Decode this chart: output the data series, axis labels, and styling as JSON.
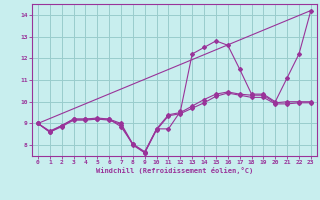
{
  "xlabel": "Windchill (Refroidissement éolien,°C)",
  "bg_color": "#c8eeee",
  "line_color": "#993399",
  "grid_color": "#99cccc",
  "xlim": [
    -0.5,
    23.5
  ],
  "ylim": [
    7.5,
    14.5
  ],
  "yticks": [
    8,
    9,
    10,
    11,
    12,
    13,
    14
  ],
  "xticks": [
    0,
    1,
    2,
    3,
    4,
    5,
    6,
    7,
    8,
    9,
    10,
    11,
    12,
    13,
    14,
    15,
    16,
    17,
    18,
    19,
    20,
    21,
    22,
    23
  ],
  "lines": [
    {
      "x": [
        0,
        1,
        2,
        3,
        4,
        5,
        6,
        7,
        8,
        9,
        10,
        11,
        12,
        13,
        14,
        15,
        16,
        17,
        18,
        19,
        20,
        21,
        22,
        23
      ],
      "y": [
        9.0,
        8.6,
        8.9,
        9.2,
        9.2,
        9.2,
        9.2,
        8.85,
        8.05,
        7.65,
        8.75,
        8.75,
        9.55,
        12.2,
        12.5,
        12.8,
        12.6,
        11.5,
        10.35,
        10.35,
        10.0,
        11.1,
        12.2,
        14.2
      ]
    },
    {
      "x": [
        0,
        23
      ],
      "y": [
        9.0,
        14.2
      ]
    },
    {
      "x": [
        0,
        1,
        2,
        3,
        4,
        5,
        6,
        7,
        8,
        9,
        10,
        11,
        12,
        13,
        14,
        15,
        16,
        17,
        18,
        19,
        20,
        21,
        22,
        23
      ],
      "y": [
        9.0,
        8.65,
        8.9,
        9.2,
        9.2,
        9.25,
        9.2,
        9.0,
        8.05,
        7.7,
        8.75,
        9.4,
        9.5,
        9.8,
        10.1,
        10.35,
        10.45,
        10.35,
        10.3,
        10.3,
        9.95,
        10.0,
        10.0,
        10.0
      ]
    },
    {
      "x": [
        0,
        1,
        2,
        3,
        4,
        5,
        6,
        7,
        8,
        9,
        10,
        11,
        12,
        13,
        14,
        15,
        16,
        17,
        18,
        19,
        20,
        21,
        22,
        23
      ],
      "y": [
        9.0,
        8.6,
        8.85,
        9.15,
        9.15,
        9.2,
        9.15,
        8.95,
        8.0,
        7.65,
        8.7,
        9.35,
        9.45,
        9.7,
        9.95,
        10.25,
        10.4,
        10.3,
        10.2,
        10.2,
        9.9,
        9.9,
        9.95,
        9.95
      ]
    }
  ]
}
